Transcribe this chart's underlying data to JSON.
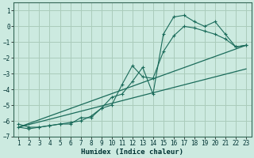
{
  "title": "",
  "xlabel": "Humidex (Indice chaleur)",
  "bg_color": "#cceae0",
  "grid_color": "#aaccbb",
  "line_color": "#1a6b5a",
  "x": [
    1,
    2,
    3,
    4,
    5,
    6,
    7,
    8,
    9,
    10,
    11,
    12,
    13,
    14,
    15,
    16,
    17,
    18,
    19,
    20,
    21,
    22,
    23
  ],
  "line1": [
    -6.4,
    -6.5,
    -6.4,
    -6.3,
    -6.2,
    -6.2,
    -5.8,
    -5.8,
    -5.2,
    -4.5,
    -4.3,
    -3.5,
    -2.6,
    -4.3,
    -0.5,
    0.6,
    0.7,
    0.3,
    0.0,
    0.3,
    -0.5,
    -1.3,
    -1.2
  ],
  "line2": [
    -6.2,
    -6.4,
    -6.4,
    -6.3,
    -6.2,
    -6.1,
    -6.0,
    -5.7,
    -5.2,
    -5.0,
    -3.7,
    -2.5,
    -3.2,
    -3.3,
    -1.6,
    -0.6,
    0.0,
    -0.1,
    -0.3,
    -0.5,
    -0.8,
    -1.3,
    -1.2
  ],
  "line3_x": [
    1,
    23
  ],
  "line3_y": [
    -6.4,
    -1.2
  ],
  "line4_x": [
    1,
    23
  ],
  "line4_y": [
    -6.4,
    -2.7
  ],
  "ylim": [
    -7,
    1.5
  ],
  "xlim": [
    0.5,
    23.5
  ],
  "yticks": [
    1,
    0,
    -1,
    -2,
    -3,
    -4,
    -5,
    -6,
    -7
  ],
  "xticks": [
    1,
    2,
    3,
    4,
    5,
    6,
    7,
    8,
    9,
    10,
    11,
    12,
    13,
    14,
    15,
    16,
    17,
    18,
    19,
    20,
    21,
    22,
    23
  ]
}
